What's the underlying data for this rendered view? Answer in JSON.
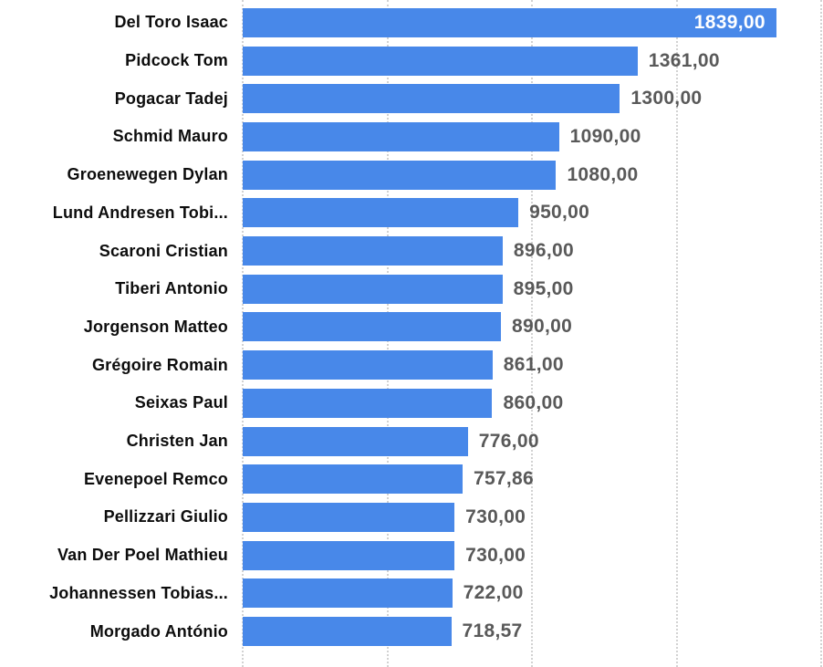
{
  "page": {
    "background_color": "#ffffff"
  },
  "chart_data": {
    "type": "bar",
    "orientation": "horizontal",
    "title": "",
    "xlabel": "",
    "ylabel": "",
    "legend": "none",
    "grid": "dotted-vertical",
    "xlim": [
      0,
      2000
    ],
    "gridline_ticks": [
      0,
      500,
      1000,
      1500,
      2000
    ],
    "bar_color": "#4888E9",
    "value_label_color": "#595959",
    "inside_value_label_color": "#ffffff",
    "category_label_color": "#0d0d0d",
    "gridline_color": "#d2d2d2",
    "categories": [
      "Del Toro Isaac",
      "Pidcock Tom",
      "Pogacar Tadej",
      "Schmid Mauro",
      "Groenewegen Dylan",
      "Lund Andresen Tobi...",
      "Scaroni Cristian",
      "Tiberi Antonio",
      "Jorgenson Matteo",
      "Grégoire Romain",
      "Seixas Paul",
      "Christen Jan",
      "Evenepoel Remco",
      "Pellizzari Giulio",
      "Van Der Poel Mathieu",
      "Johannessen Tobias...",
      "Morgado António"
    ],
    "values": [
      1839,
      1361,
      1300,
      1090,
      1080,
      950,
      896,
      895,
      890,
      861,
      860,
      776,
      757.86,
      730,
      730,
      722,
      718.57
    ],
    "value_labels": [
      "1839,00",
      "1361,00",
      "1300,00",
      "1090,00",
      "1080,00",
      "950,00",
      "896,00",
      "895,00",
      "890,00",
      "861,00",
      "860,00",
      "776,00",
      "757,86",
      "730,00",
      "730,00",
      "722,00",
      "718,57"
    ],
    "value_label_placement": [
      "inside",
      "outside",
      "outside",
      "outside",
      "outside",
      "outside",
      "outside",
      "outside",
      "outside",
      "outside",
      "outside",
      "outside",
      "outside",
      "outside",
      "outside",
      "outside",
      "outside"
    ]
  }
}
